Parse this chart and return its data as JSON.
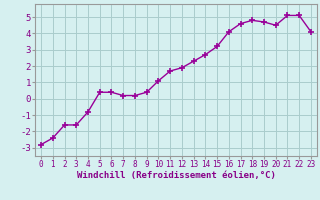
{
  "x": [
    0,
    1,
    2,
    3,
    4,
    5,
    6,
    7,
    8,
    9,
    10,
    11,
    12,
    13,
    14,
    15,
    16,
    17,
    18,
    19,
    20,
    21,
    22,
    23
  ],
  "y": [
    -2.8,
    -2.4,
    -1.6,
    -1.6,
    -0.8,
    0.4,
    0.4,
    0.2,
    0.2,
    0.4,
    1.1,
    1.7,
    1.9,
    2.3,
    2.7,
    3.2,
    4.1,
    4.6,
    4.8,
    4.7,
    4.5,
    5.1,
    5.1,
    4.1
  ],
  "line_color": "#990099",
  "marker": "+",
  "marker_size": 4,
  "marker_lw": 1.2,
  "background_color": "#d6f0f0",
  "grid_color": "#aacccc",
  "xlabel": "Windchill (Refroidissement éolien,°C)",
  "xlabel_color": "#880088",
  "ytick_labels": [
    "-3",
    "-2",
    "-1",
    "0",
    "1",
    "2",
    "3",
    "4",
    "5"
  ],
  "ytick_vals": [
    -3,
    -2,
    -1,
    0,
    1,
    2,
    3,
    4,
    5
  ],
  "xlim": [
    -0.5,
    23.5
  ],
  "ylim": [
    -3.5,
    5.8
  ],
  "tick_color": "#880088",
  "font_family": "monospace",
  "xtick_fontsize": 5.5,
  "ytick_fontsize": 6.5,
  "xlabel_fontsize": 6.5,
  "linewidth": 1.0
}
